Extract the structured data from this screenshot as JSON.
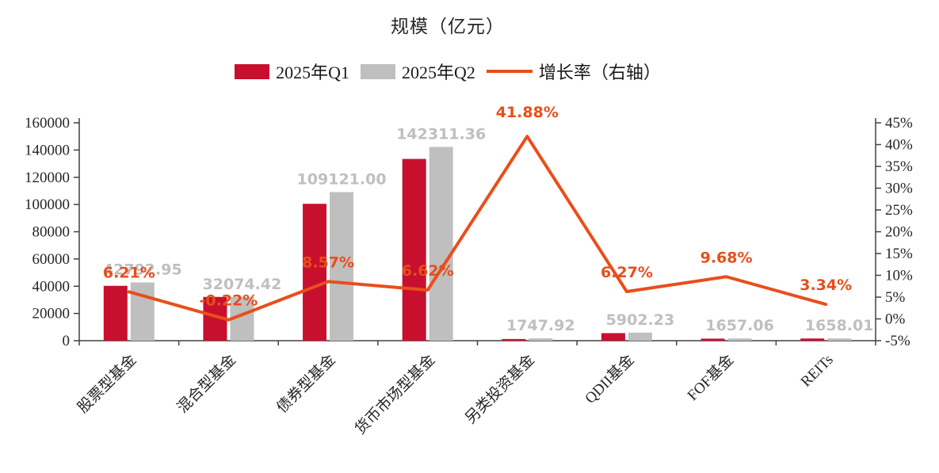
{
  "title": "规模（亿元）",
  "legend": [
    {
      "label": "2025年Q1",
      "color": "#C8102E",
      "type": "bar"
    },
    {
      "label": "2025年Q2",
      "color": "#BFBFBF",
      "type": "bar"
    },
    {
      "label": "增长率（右轴）",
      "color": "#E94E1B",
      "type": "line"
    }
  ],
  "colors": {
    "q1_bar": "#C8102E",
    "q2_bar": "#BFBFBF",
    "growth_line": "#E94E1B",
    "axis": "#404040",
    "axis_text": "#262626",
    "value_label": "#BFBFBF"
  },
  "chart_data": {
    "type": "bar+line",
    "title": "规模（亿元）",
    "categories": [
      "股票型基金",
      "混合型基金",
      "债券型基金",
      "货币市场型基金",
      "另类投资基金",
      "QDII基金",
      "FOF基金",
      "REITs"
    ],
    "series": [
      {
        "name": "2025年Q1",
        "type": "bar",
        "axis": "left",
        "color": "#C8102E",
        "values": [
          40291,
          32145,
          100508,
          133475,
          1232,
          5554,
          1511,
          1604
        ]
      },
      {
        "name": "2025年Q2",
        "type": "bar",
        "axis": "left",
        "color": "#BFBFBF",
        "values": [
          42792.95,
          32074.42,
          109121.0,
          142311.36,
          1747.92,
          5902.23,
          1657.06,
          1658.01
        ],
        "labels": [
          "42792.95",
          "32074.42",
          "109121.00",
          "142311.36",
          "1747.92",
          "5902.23",
          "1657.06",
          "1658.01"
        ]
      },
      {
        "name": "增长率（右轴）",
        "type": "line",
        "axis": "right",
        "color": "#E94E1B",
        "values": [
          6.21,
          -0.22,
          8.57,
          6.62,
          41.88,
          6.27,
          9.68,
          3.34
        ],
        "labels": [
          "6.21%",
          "-0.22%",
          "8.57%",
          "6.62%",
          "41.88%",
          "6.27%",
          "9.68%",
          "3.34%"
        ]
      }
    ],
    "left_axis": {
      "min": 0,
      "max": 160000,
      "step": 20000,
      "tick_labels": [
        "0",
        "20000",
        "40000",
        "60000",
        "80000",
        "100000",
        "120000",
        "140000",
        "160000"
      ]
    },
    "right_axis": {
      "min": -5,
      "max": 45,
      "step": 5,
      "tick_labels": [
        "-5%",
        "0%",
        "5%",
        "10%",
        "15%",
        "20%",
        "25%",
        "30%",
        "35%",
        "40%",
        "45%"
      ]
    },
    "legend_position": "top",
    "grid": false
  }
}
